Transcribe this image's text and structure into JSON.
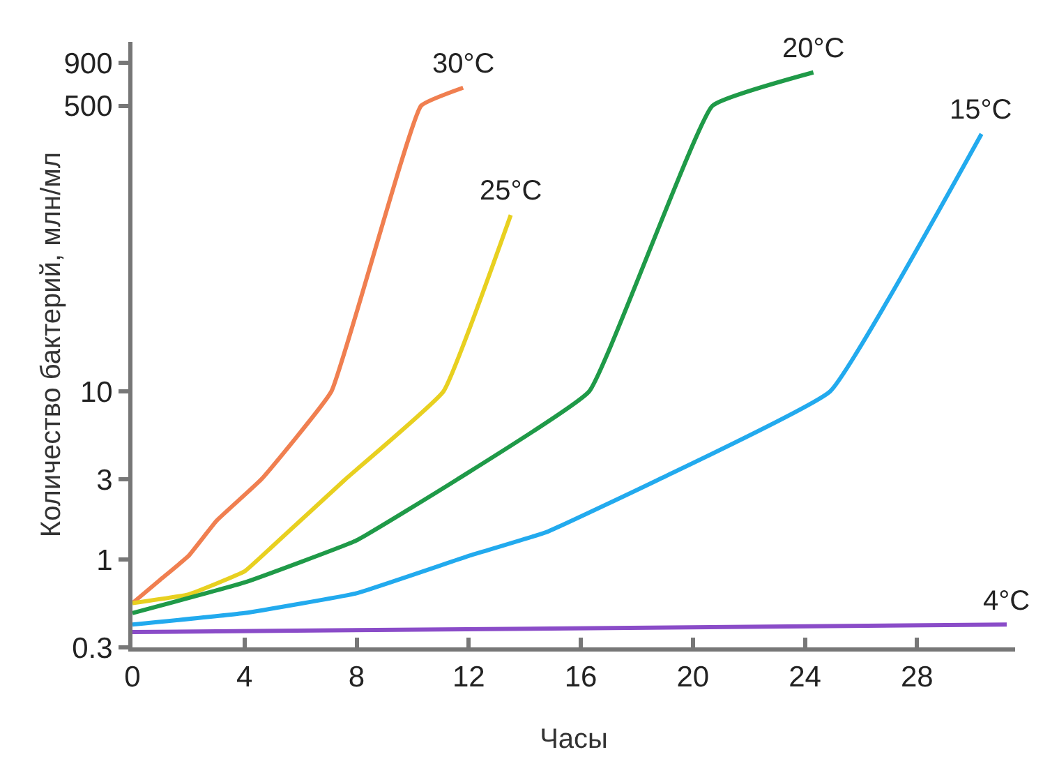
{
  "chart_data": {
    "type": "line",
    "xlabel": "Часы",
    "ylabel": "Количество бактерий, млн/мл",
    "log": "y",
    "grid": false,
    "legend": false,
    "marker": "none",
    "line_style": "solid",
    "xlim": [
      0,
      31.5
    ],
    "xticks": [
      0,
      4,
      8,
      12,
      16,
      20,
      24,
      28
    ],
    "ylim": [
      0.3,
      1200
    ],
    "yticks": [
      0.3,
      1,
      3,
      10,
      500,
      900
    ],
    "series": [
      {
        "name": "30°C",
        "color": "#f07f50",
        "x": [
          0,
          1,
          2,
          3,
          4.6,
          7.1,
          10.3,
          11.8
        ],
        "values": [
          0.55,
          0.76,
          1.05,
          1.7,
          3,
          10,
          500,
          640
        ]
      },
      {
        "name": "25°C",
        "color": "#e8d020",
        "x": [
          0,
          2,
          4,
          5,
          7.6,
          11.1,
          13.5
        ],
        "values": [
          0.55,
          0.62,
          0.85,
          1.2,
          3,
          10,
          112
        ]
      },
      {
        "name": "20°C",
        "color": "#1f9a48",
        "x": [
          0,
          4,
          8,
          11.6,
          16.3,
          20.7,
          24.3
        ],
        "values": [
          0.48,
          0.73,
          1.3,
          3,
          10,
          500,
          790
        ]
      },
      {
        "name": "15°C",
        "color": "#22aaee",
        "x": [
          0,
          4,
          8,
          12,
          14.8,
          18.8,
          24.9,
          30.3
        ],
        "values": [
          0.41,
          0.48,
          0.63,
          1.05,
          1.46,
          3,
          10,
          340
        ]
      },
      {
        "name": "4°C",
        "color": "#8a4cc8",
        "x": [
          0,
          31.2
        ],
        "values": [
          0.37,
          0.41
        ]
      }
    ]
  }
}
